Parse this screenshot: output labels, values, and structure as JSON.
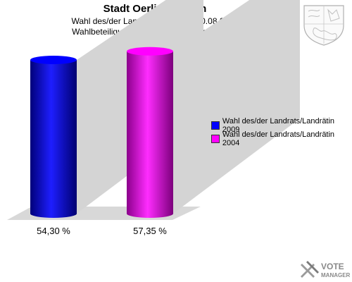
{
  "chart_data": {
    "type": "bar",
    "title": "Stadt Oerlinghausen",
    "subtitle": [
      "Wahl des/der Landrats/Landrätin 30.08.2009",
      "Wahlbeteiligung 03 Grundschule Helpup (III)"
    ],
    "xlabel": "",
    "ylabel": "",
    "ylim": [
      0,
      60
    ],
    "grid": false,
    "legend_position": "right",
    "series": [
      {
        "name": "Wahl des/der Landrats/Landrätin 2009",
        "value": 54.3,
        "label": "54,30 %",
        "color": "#0000ff"
      },
      {
        "name": "Wahl des/der Landrats/Landrätin 2004",
        "value": 57.35,
        "label": "57,35 %",
        "color": "#ff00ff"
      }
    ]
  },
  "logo": {
    "line1": "VOTE",
    "line2": "MANAGER"
  }
}
